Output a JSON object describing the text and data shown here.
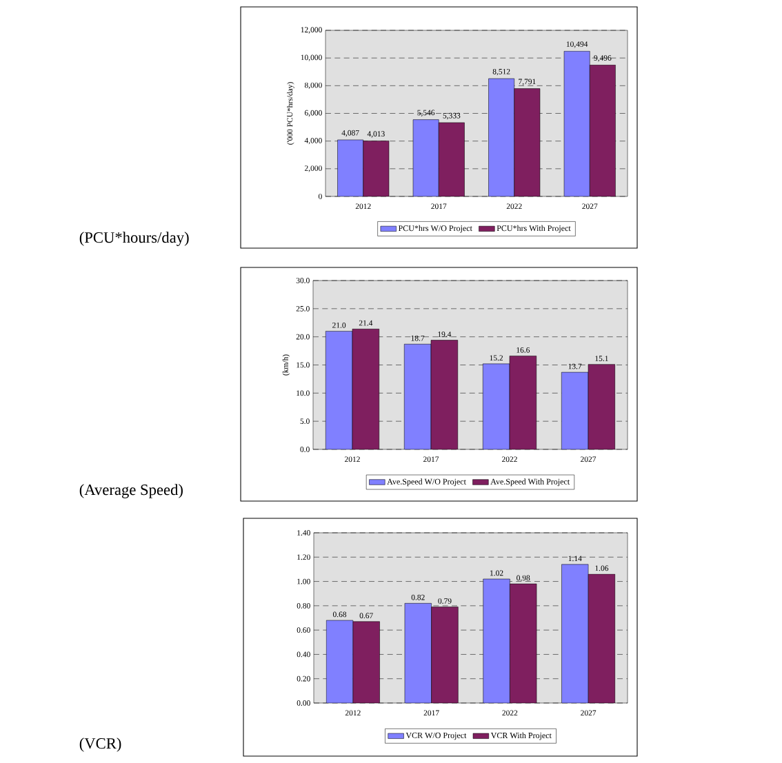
{
  "chart_data": [
    {
      "type": "bar",
      "categories": [
        "2012",
        "2017",
        "2022",
        "2027"
      ],
      "ylabel": "('000 PCU*hrs/day)",
      "annotations": [
        "(PCU*hours/day)"
      ],
      "series": [
        {
          "name": "PCU*hrs W/O Project",
          "color": "#8080ff",
          "values": [
            4087,
            5546,
            8512,
            10494
          ],
          "value_labels": [
            "4,087",
            "5,546",
            "8,512",
            "10,494"
          ]
        },
        {
          "name": "PCU*hrs With Project",
          "color": "#7f1f5f",
          "values": [
            4013,
            5333,
            7791,
            9496
          ],
          "value_labels": [
            "4,013",
            "5,333",
            "7,791",
            "9,496"
          ]
        }
      ],
      "ylim": [
        0,
        12000
      ],
      "yticks": [
        0,
        {
          "value": 2000,
          "label": "2,000"
        },
        {
          "value": 4000,
          "label": "4,000"
        },
        {
          "value": 6000,
          "label": "6,000"
        },
        {
          "value": 8000,
          "label": "8,000"
        },
        {
          "value": 10000,
          "label": "10,000"
        },
        {
          "value": 12000,
          "label": "12,000"
        }
      ],
      "grid": "y",
      "legend": "bottom"
    },
    {
      "type": "bar",
      "categories": [
        "2012",
        "2017",
        "2022",
        "2027"
      ],
      "ylabel": "(km/h)",
      "annotations": [
        "(Average Speed)"
      ],
      "series": [
        {
          "name": "Ave.Speed W/O Project",
          "color": "#8080ff",
          "values": [
            21.0,
            18.7,
            15.2,
            13.7
          ],
          "value_labels": [
            "21.0",
            "18.7",
            "15.2",
            "13.7"
          ]
        },
        {
          "name": "Ave.Speed With Project",
          "color": "#7f1f5f",
          "values": [
            21.4,
            19.4,
            16.6,
            15.1
          ],
          "value_labels": [
            "21.4",
            "19.4",
            "16.6",
            "15.1"
          ]
        }
      ],
      "ylim": [
        0,
        30
      ],
      "yticks": [
        {
          "value": 0,
          "label": "0.0"
        },
        {
          "value": 5,
          "label": "5.0"
        },
        {
          "value": 10,
          "label": "10.0"
        },
        {
          "value": 15,
          "label": "15.0"
        },
        {
          "value": 20,
          "label": "20.0"
        },
        {
          "value": 25,
          "label": "25.0"
        },
        {
          "value": 30,
          "label": "30.0"
        }
      ],
      "grid": "y",
      "legend": "bottom"
    },
    {
      "type": "bar",
      "categories": [
        "2012",
        "2017",
        "2022",
        "2027"
      ],
      "annotations": [
        "(VCR)"
      ],
      "series": [
        {
          "name": "VCR W/O Project",
          "color": "#8080ff",
          "values": [
            0.68,
            0.82,
            1.02,
            1.14
          ],
          "value_labels": [
            "0.68",
            "0.82",
            "1.02",
            "1.14"
          ]
        },
        {
          "name": "VCR With Project",
          "color": "#7f1f5f",
          "values": [
            0.67,
            0.79,
            0.98,
            1.06
          ],
          "value_labels": [
            "0.67",
            "0.79",
            "0.98",
            "1.06"
          ]
        }
      ],
      "ylim": [
        0,
        1.4
      ],
      "yticks": [
        {
          "value": 0,
          "label": "0.00"
        },
        {
          "value": 0.2,
          "label": "0.20"
        },
        {
          "value": 0.4,
          "label": "0.40"
        },
        {
          "value": 0.6,
          "label": "0.60"
        },
        {
          "value": 0.8,
          "label": "0.80"
        },
        {
          "value": 1.0,
          "label": "1.00"
        },
        {
          "value": 1.2,
          "label": "1.20"
        },
        {
          "value": 1.4,
          "label": "1.40"
        }
      ],
      "grid": "y",
      "legend": "bottom"
    }
  ]
}
